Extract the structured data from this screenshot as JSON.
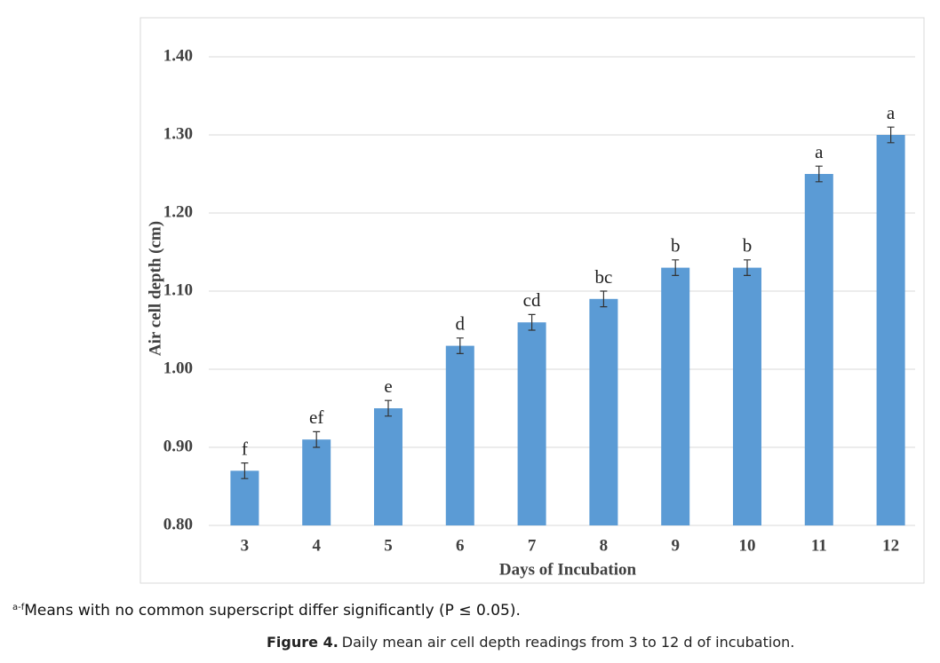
{
  "chart_data": {
    "type": "bar",
    "y_label": "Air cell depth (cm)",
    "x_label": "Days of Incubation",
    "categories": [
      "3",
      "4",
      "5",
      "6",
      "7",
      "8",
      "9",
      "10",
      "11",
      "12"
    ],
    "values": [
      0.87,
      0.91,
      0.95,
      1.03,
      1.06,
      1.09,
      1.13,
      1.13,
      1.25,
      1.3
    ],
    "errors": [
      0.01,
      0.01,
      0.01,
      0.01,
      0.01,
      0.01,
      0.01,
      0.01,
      0.01,
      0.01
    ],
    "letters": [
      "f",
      "ef",
      "e",
      "d",
      "cd",
      "bc",
      "b",
      "b",
      "a",
      "a"
    ],
    "color": "#5b9bd5",
    "ylim": [
      0.8,
      1.4
    ],
    "yticks": [
      {
        "value": 0.8,
        "label": "0.80"
      },
      {
        "value": 0.9,
        "label": "0.90"
      },
      {
        "value": 1.0,
        "label": "1.00"
      },
      {
        "value": 1.1,
        "label": "1.10"
      },
      {
        "value": 1.2,
        "label": "1.20"
      },
      {
        "value": 1.3,
        "label": "1.30"
      },
      {
        "value": 1.4,
        "label": "1.40"
      }
    ],
    "grid": true
  },
  "footnote": {
    "superscript": "a-f",
    "text": "Means with no common superscript differ significantly (P ≤ 0.05)."
  },
  "caption": {
    "label": "Figure 4.",
    "text": "Daily mean air cell depth readings from 3 to 12 d of incubation."
  }
}
